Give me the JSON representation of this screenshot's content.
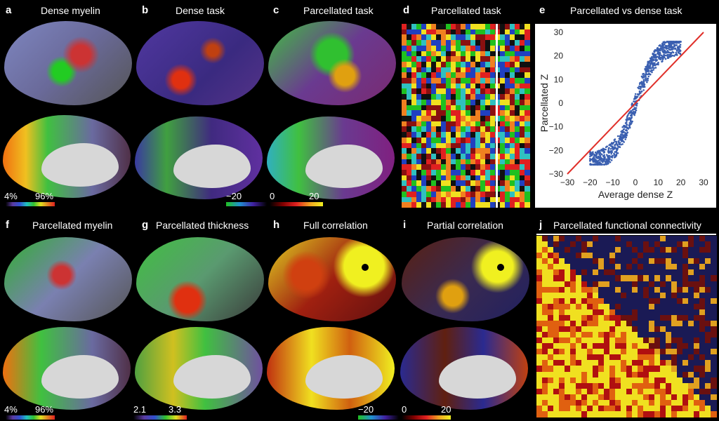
{
  "panels": {
    "a": {
      "letter": "a",
      "title": "Dense myelin",
      "cb_min": "4%",
      "cb_max": "96%"
    },
    "b": {
      "letter": "b",
      "title": "Dense task",
      "cb_min": "−20"
    },
    "c": {
      "letter": "c",
      "title": "Parcellated task",
      "cb_zero": "0",
      "cb_max": "20"
    },
    "d": {
      "letter": "d",
      "title": "Parcellated task"
    },
    "e": {
      "letter": "e",
      "title": "Parcellated vs dense task"
    },
    "f": {
      "letter": "f",
      "title": "Parcellated myelin",
      "cb_min": "4%",
      "cb_max": "96%"
    },
    "g": {
      "letter": "g",
      "title": "Parcellated thickness",
      "cb_min": "2.1",
      "cb_max": "3.3"
    },
    "h": {
      "letter": "h",
      "title": "Full correlation",
      "cb_min": "−20"
    },
    "i": {
      "letter": "i",
      "title": "Partial correlation",
      "cb_zero": "0",
      "cb_max": "20"
    },
    "j": {
      "letter": "j",
      "title": "Parcellated functional connectivity"
    }
  },
  "colors": {
    "background": "#000000",
    "scatter_points": "#3a5fb0",
    "identity_line": "#e0302a"
  },
  "chart_data": {
    "type": "scatter",
    "title": "Parcellated vs dense task",
    "xlabel": "Average dense Z",
    "ylabel": "Parcellated Z",
    "xlim": [
      -30,
      30
    ],
    "ylim": [
      -30,
      30
    ],
    "xticks": [
      "−30",
      "−20",
      "−10",
      "0",
      "10",
      "20",
      "30"
    ],
    "yticks": [
      "30",
      "20",
      "10",
      "0",
      "−10",
      "−20",
      "−30"
    ],
    "identity_line": [
      [
        -30,
        -30
      ],
      [
        30,
        30
      ]
    ],
    "point_cloud": {
      "x_range": [
        -20,
        20
      ],
      "y_range": [
        -26,
        26
      ],
      "trend": "sigmoidal"
    }
  }
}
